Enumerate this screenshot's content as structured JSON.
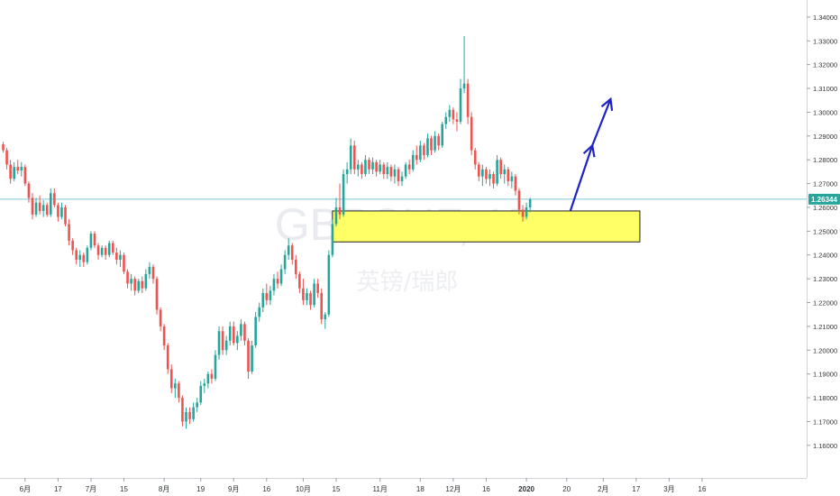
{
  "watermark": {
    "symbol": "GBPCHF, 1D",
    "name": "英镑/瑞郎"
  },
  "current_price": "1.26344",
  "colors": {
    "up": "#26a69a",
    "down": "#ef5350",
    "price_line": "#7ec8d0",
    "price_tag": "#26a69a",
    "zone_fill": "#ffff66",
    "arrow": "#1e22c8",
    "axis_text": "#2f3336"
  },
  "chart_data": {
    "type": "candlestick",
    "title": "",
    "symbol": "GBPCHF",
    "timeframe": "1D",
    "ylim": [
      1.1535,
      1.3445
    ],
    "y_ticks": [
      "1.34000",
      "1.33000",
      "1.32000",
      "1.31000",
      "1.30000",
      "1.29000",
      "1.28000",
      "1.27000",
      "1.26000",
      "1.25000",
      "1.24000",
      "1.23000",
      "1.22000",
      "1.21000",
      "1.20000",
      "1.19000",
      "1.18000",
      "1.17000",
      "1.16000"
    ],
    "x_ticks": [
      {
        "label": "6月",
        "i": 6,
        "bold": false
      },
      {
        "label": "17",
        "i": 15,
        "bold": false
      },
      {
        "label": "7月",
        "i": 24,
        "bold": false
      },
      {
        "label": "15",
        "i": 33,
        "bold": false
      },
      {
        "label": "8月",
        "i": 44,
        "bold": false
      },
      {
        "label": "19",
        "i": 54,
        "bold": false
      },
      {
        "label": "9月",
        "i": 63,
        "bold": false
      },
      {
        "label": "16",
        "i": 72,
        "bold": false
      },
      {
        "label": "10月",
        "i": 82,
        "bold": false
      },
      {
        "label": "15",
        "i": 91,
        "bold": false
      },
      {
        "label": "11月",
        "i": 103,
        "bold": false
      },
      {
        "label": "18",
        "i": 114,
        "bold": false
      },
      {
        "label": "12月",
        "i": 123,
        "bold": false
      },
      {
        "label": "16",
        "i": 132,
        "bold": false
      },
      {
        "label": "2020",
        "i": 143,
        "bold": true
      },
      {
        "label": "20",
        "i": 154,
        "bold": false
      },
      {
        "label": "2月",
        "i": 164,
        "bold": false
      },
      {
        "label": "17",
        "i": 173,
        "bold": false
      },
      {
        "label": "3月",
        "i": 182,
        "bold": false
      },
      {
        "label": "16",
        "i": 191,
        "bold": false
      }
    ],
    "current_price_value": 1.26344,
    "support_zone": {
      "low": 1.2455,
      "high": 1.2585,
      "start_i": 90,
      "end_i": 174
    },
    "projection_arrow": [
      {
        "i": 155,
        "price": 1.2585
      },
      {
        "i": 161,
        "price": 1.286
      },
      {
        "i": 166,
        "price": 1.3055
      }
    ],
    "candles": [
      [
        1.2865,
        1.2875,
        1.283,
        1.284
      ],
      [
        1.284,
        1.285,
        1.276,
        1.278
      ],
      [
        1.278,
        1.28,
        1.27,
        1.272
      ],
      [
        1.272,
        1.279,
        1.271,
        1.277
      ],
      [
        1.277,
        1.28,
        1.274,
        1.2755
      ],
      [
        1.2755,
        1.279,
        1.273,
        1.277
      ],
      [
        1.277,
        1.278,
        1.269,
        1.27
      ],
      [
        1.27,
        1.271,
        1.262,
        1.264
      ],
      [
        1.264,
        1.266,
        1.255,
        1.257
      ],
      [
        1.257,
        1.264,
        1.256,
        1.262
      ],
      [
        1.262,
        1.265,
        1.257,
        1.2585
      ],
      [
        1.2585,
        1.263,
        1.256,
        1.261
      ],
      [
        1.261,
        1.262,
        1.256,
        1.257
      ],
      [
        1.257,
        1.268,
        1.256,
        1.266
      ],
      [
        1.266,
        1.268,
        1.26,
        1.261
      ],
      [
        1.261,
        1.262,
        1.254,
        1.256
      ],
      [
        1.256,
        1.262,
        1.255,
        1.26
      ],
      [
        1.26,
        1.261,
        1.252,
        1.253
      ],
      [
        1.253,
        1.255,
        1.244,
        1.246
      ],
      [
        1.246,
        1.247,
        1.24,
        1.242
      ],
      [
        1.242,
        1.243,
        1.236,
        1.238
      ],
      [
        1.238,
        1.242,
        1.235,
        1.24
      ],
      [
        1.24,
        1.241,
        1.235,
        1.237
      ],
      [
        1.237,
        1.244,
        1.236,
        1.243
      ],
      [
        1.243,
        1.25,
        1.242,
        1.249
      ],
      [
        1.249,
        1.25,
        1.243,
        1.244
      ],
      [
        1.244,
        1.245,
        1.238,
        1.24
      ],
      [
        1.24,
        1.244,
        1.239,
        1.243
      ],
      [
        1.243,
        1.244,
        1.238,
        1.24
      ],
      [
        1.24,
        1.246,
        1.239,
        1.245
      ],
      [
        1.245,
        1.246,
        1.24,
        1.241
      ],
      [
        1.241,
        1.243,
        1.236,
        1.238
      ],
      [
        1.238,
        1.242,
        1.235,
        1.24
      ],
      [
        1.24,
        1.241,
        1.232,
        1.233
      ],
      [
        1.233,
        1.234,
        1.226,
        1.228
      ],
      [
        1.228,
        1.232,
        1.225,
        1.23
      ],
      [
        1.23,
        1.231,
        1.223,
        1.225
      ],
      [
        1.225,
        1.23,
        1.224,
        1.229
      ],
      [
        1.229,
        1.231,
        1.224,
        1.226
      ],
      [
        1.226,
        1.234,
        1.225,
        1.232
      ],
      [
        1.232,
        1.237,
        1.23,
        1.235
      ],
      [
        1.235,
        1.236,
        1.228,
        1.23
      ],
      [
        1.23,
        1.231,
        1.215,
        1.217
      ],
      [
        1.217,
        1.218,
        1.208,
        1.21
      ],
      [
        1.21,
        1.211,
        1.2,
        1.202
      ],
      [
        1.202,
        1.203,
        1.19,
        1.192
      ],
      [
        1.192,
        1.194,
        1.182,
        1.184
      ],
      [
        1.184,
        1.188,
        1.18,
        1.186
      ],
      [
        1.186,
        1.187,
        1.178,
        1.18
      ],
      [
        1.18,
        1.181,
        1.168,
        1.17
      ],
      [
        1.17,
        1.176,
        1.167,
        1.174
      ],
      [
        1.174,
        1.176,
        1.169,
        1.171
      ],
      [
        1.171,
        1.178,
        1.17,
        1.176
      ],
      [
        1.176,
        1.18,
        1.174,
        1.178
      ],
      [
        1.178,
        1.187,
        1.177,
        1.185
      ],
      [
        1.185,
        1.188,
        1.182,
        1.186
      ],
      [
        1.186,
        1.191,
        1.184,
        1.19
      ],
      [
        1.19,
        1.192,
        1.186,
        1.188
      ],
      [
        1.188,
        1.2,
        1.187,
        1.198
      ],
      [
        1.198,
        1.21,
        1.196,
        1.208
      ],
      [
        1.208,
        1.21,
        1.198,
        1.2
      ],
      [
        1.2,
        1.206,
        1.198,
        1.204
      ],
      [
        1.204,
        1.212,
        1.202,
        1.21
      ],
      [
        1.21,
        1.212,
        1.202,
        1.203
      ],
      [
        1.203,
        1.208,
        1.2,
        1.206
      ],
      [
        1.206,
        1.213,
        1.204,
        1.211
      ],
      [
        1.211,
        1.212,
        1.202,
        1.204
      ],
      [
        1.204,
        1.205,
        1.188,
        1.191
      ],
      [
        1.191,
        1.204,
        1.19,
        1.202
      ],
      [
        1.202,
        1.216,
        1.201,
        1.214
      ],
      [
        1.214,
        1.22,
        1.212,
        1.218
      ],
      [
        1.218,
        1.226,
        1.216,
        1.224
      ],
      [
        1.224,
        1.228,
        1.219,
        1.221
      ],
      [
        1.221,
        1.227,
        1.219,
        1.225
      ],
      [
        1.225,
        1.232,
        1.223,
        1.23
      ],
      [
        1.23,
        1.233,
        1.226,
        1.228
      ],
      [
        1.228,
        1.236,
        1.227,
        1.234
      ],
      [
        1.234,
        1.242,
        1.232,
        1.24
      ],
      [
        1.24,
        1.247,
        1.238,
        1.244
      ],
      [
        1.244,
        1.245,
        1.236,
        1.238
      ],
      [
        1.238,
        1.24,
        1.23,
        1.232
      ],
      [
        1.232,
        1.233,
        1.224,
        1.226
      ],
      [
        1.226,
        1.23,
        1.219,
        1.221
      ],
      [
        1.221,
        1.226,
        1.219,
        1.224
      ],
      [
        1.224,
        1.225,
        1.217,
        1.219
      ],
      [
        1.219,
        1.23,
        1.218,
        1.228
      ],
      [
        1.228,
        1.23,
        1.222,
        1.224
      ],
      [
        1.224,
        1.226,
        1.211,
        1.213
      ],
      [
        1.213,
        1.216,
        1.209,
        1.215
      ],
      [
        1.215,
        1.242,
        1.214,
        1.24
      ],
      [
        1.24,
        1.255,
        1.239,
        1.253
      ],
      [
        1.253,
        1.264,
        1.252,
        1.26
      ],
      [
        1.26,
        1.27,
        1.255,
        1.257
      ],
      [
        1.257,
        1.276,
        1.256,
        1.274
      ],
      [
        1.274,
        1.279,
        1.27,
        1.276
      ],
      [
        1.276,
        1.289,
        1.274,
        1.286
      ],
      [
        1.286,
        1.288,
        1.274,
        1.276
      ],
      [
        1.276,
        1.28,
        1.273,
        1.278
      ],
      [
        1.278,
        1.279,
        1.272,
        1.274
      ],
      [
        1.274,
        1.282,
        1.273,
        1.28
      ],
      [
        1.28,
        1.281,
        1.274,
        1.276
      ],
      [
        1.276,
        1.281,
        1.274,
        1.279
      ],
      [
        1.279,
        1.28,
        1.273,
        1.275
      ],
      [
        1.275,
        1.28,
        1.274,
        1.278
      ],
      [
        1.278,
        1.279,
        1.272,
        1.274
      ],
      [
        1.274,
        1.279,
        1.272,
        1.277
      ],
      [
        1.277,
        1.278,
        1.271,
        1.273
      ],
      [
        1.273,
        1.278,
        1.27,
        1.276
      ],
      [
        1.276,
        1.277,
        1.269,
        1.271
      ],
      [
        1.271,
        1.275,
        1.269,
        1.273
      ],
      [
        1.273,
        1.279,
        1.272,
        1.278
      ],
      [
        1.278,
        1.28,
        1.274,
        1.276
      ],
      [
        1.276,
        1.284,
        1.275,
        1.282
      ],
      [
        1.282,
        1.286,
        1.278,
        1.28
      ],
      [
        1.28,
        1.288,
        1.279,
        1.286
      ],
      [
        1.286,
        1.287,
        1.28,
        1.282
      ],
      [
        1.282,
        1.291,
        1.281,
        1.289
      ],
      [
        1.289,
        1.29,
        1.282,
        1.284
      ],
      [
        1.284,
        1.292,
        1.283,
        1.29
      ],
      [
        1.29,
        1.291,
        1.284,
        1.286
      ],
      [
        1.286,
        1.296,
        1.285,
        1.295
      ],
      [
        1.295,
        1.3,
        1.293,
        1.298
      ],
      [
        1.298,
        1.303,
        1.296,
        1.301
      ],
      [
        1.301,
        1.302,
        1.295,
        1.297
      ],
      [
        1.297,
        1.3,
        1.292,
        1.296
      ],
      [
        1.296,
        1.314,
        1.295,
        1.31
      ],
      [
        1.31,
        1.332,
        1.308,
        1.312
      ],
      [
        1.312,
        1.314,
        1.295,
        1.298
      ],
      [
        1.298,
        1.3,
        1.282,
        1.284
      ],
      [
        1.284,
        1.285,
        1.276,
        1.278
      ],
      [
        1.278,
        1.279,
        1.271,
        1.273
      ],
      [
        1.273,
        1.278,
        1.269,
        1.276
      ],
      [
        1.276,
        1.277,
        1.27,
        1.272
      ],
      [
        1.272,
        1.276,
        1.269,
        1.274
      ],
      [
        1.274,
        1.275,
        1.268,
        1.27
      ],
      [
        1.27,
        1.282,
        1.269,
        1.28
      ],
      [
        1.28,
        1.281,
        1.272,
        1.274
      ],
      [
        1.274,
        1.278,
        1.27,
        1.276
      ],
      [
        1.276,
        1.277,
        1.269,
        1.271
      ],
      [
        1.271,
        1.275,
        1.268,
        1.273
      ],
      [
        1.273,
        1.274,
        1.265,
        1.267
      ],
      [
        1.267,
        1.268,
        1.257,
        1.259
      ],
      [
        1.259,
        1.261,
        1.254,
        1.256
      ],
      [
        1.256,
        1.262,
        1.255,
        1.26
      ],
      [
        1.26,
        1.264,
        1.258,
        1.2634
      ]
    ]
  }
}
